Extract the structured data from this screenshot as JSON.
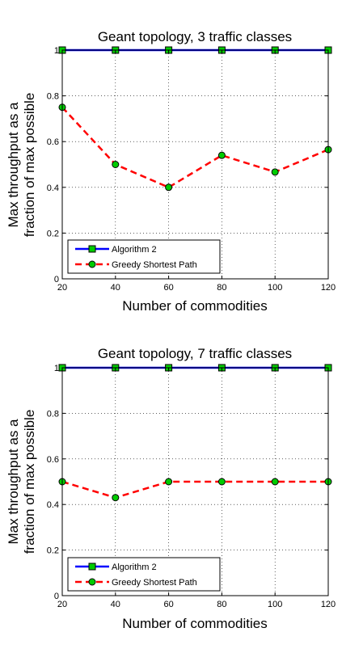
{
  "chart_data": [
    {
      "type": "line",
      "title": "Geant topology, 3 traffic classes",
      "xlabel": "Number of commodities",
      "ylabel": [
        "Max throughput as a",
        "fraction of max possible"
      ],
      "x": [
        20,
        40,
        60,
        80,
        100,
        120
      ],
      "xlim": [
        20,
        120
      ],
      "ylim": [
        0,
        1
      ],
      "xticks": [
        "20",
        "40",
        "60",
        "80",
        "100",
        "120"
      ],
      "yticks": [
        "0",
        "0.2",
        "0.4",
        "0.6",
        "0.8",
        "1"
      ],
      "grid": true,
      "legend_position": "bottom-left",
      "series": [
        {
          "name": "Algorithm 2",
          "values": [
            1,
            1,
            1,
            1,
            1,
            1
          ],
          "color": "#0000ff",
          "marker_color": "#00cc00",
          "marker": "square",
          "style": "solid"
        },
        {
          "name": "Greedy Shortest Path",
          "values": [
            0.75,
            0.5,
            0.4,
            0.54,
            0.467,
            0.565
          ],
          "color": "#ff0000",
          "marker_color": "#00cc00",
          "marker": "circle",
          "style": "dashed"
        }
      ]
    },
    {
      "type": "line",
      "title": "Geant topology, 7 traffic classes",
      "xlabel": "Number of commodities",
      "ylabel": [
        "Max throughput as a",
        "fraction of max possible"
      ],
      "x": [
        20,
        40,
        60,
        80,
        100,
        120
      ],
      "xlim": [
        20,
        120
      ],
      "ylim": [
        0,
        1
      ],
      "xticks": [
        "20",
        "40",
        "60",
        "80",
        "100",
        "120"
      ],
      "yticks": [
        "0",
        "0.2",
        "0.4",
        "0.6",
        "0.8",
        "1"
      ],
      "grid": true,
      "legend_position": "bottom-left",
      "series": [
        {
          "name": "Algorithm 2",
          "values": [
            1,
            1,
            1,
            1,
            1,
            1
          ],
          "color": "#0000ff",
          "marker_color": "#00cc00",
          "marker": "square",
          "style": "solid"
        },
        {
          "name": "Greedy Shortest Path",
          "values": [
            0.5,
            0.43,
            0.5,
            0.5,
            0.5,
            0.5
          ],
          "color": "#ff0000",
          "marker_color": "#00cc00",
          "marker": "circle",
          "style": "dashed"
        }
      ]
    }
  ]
}
